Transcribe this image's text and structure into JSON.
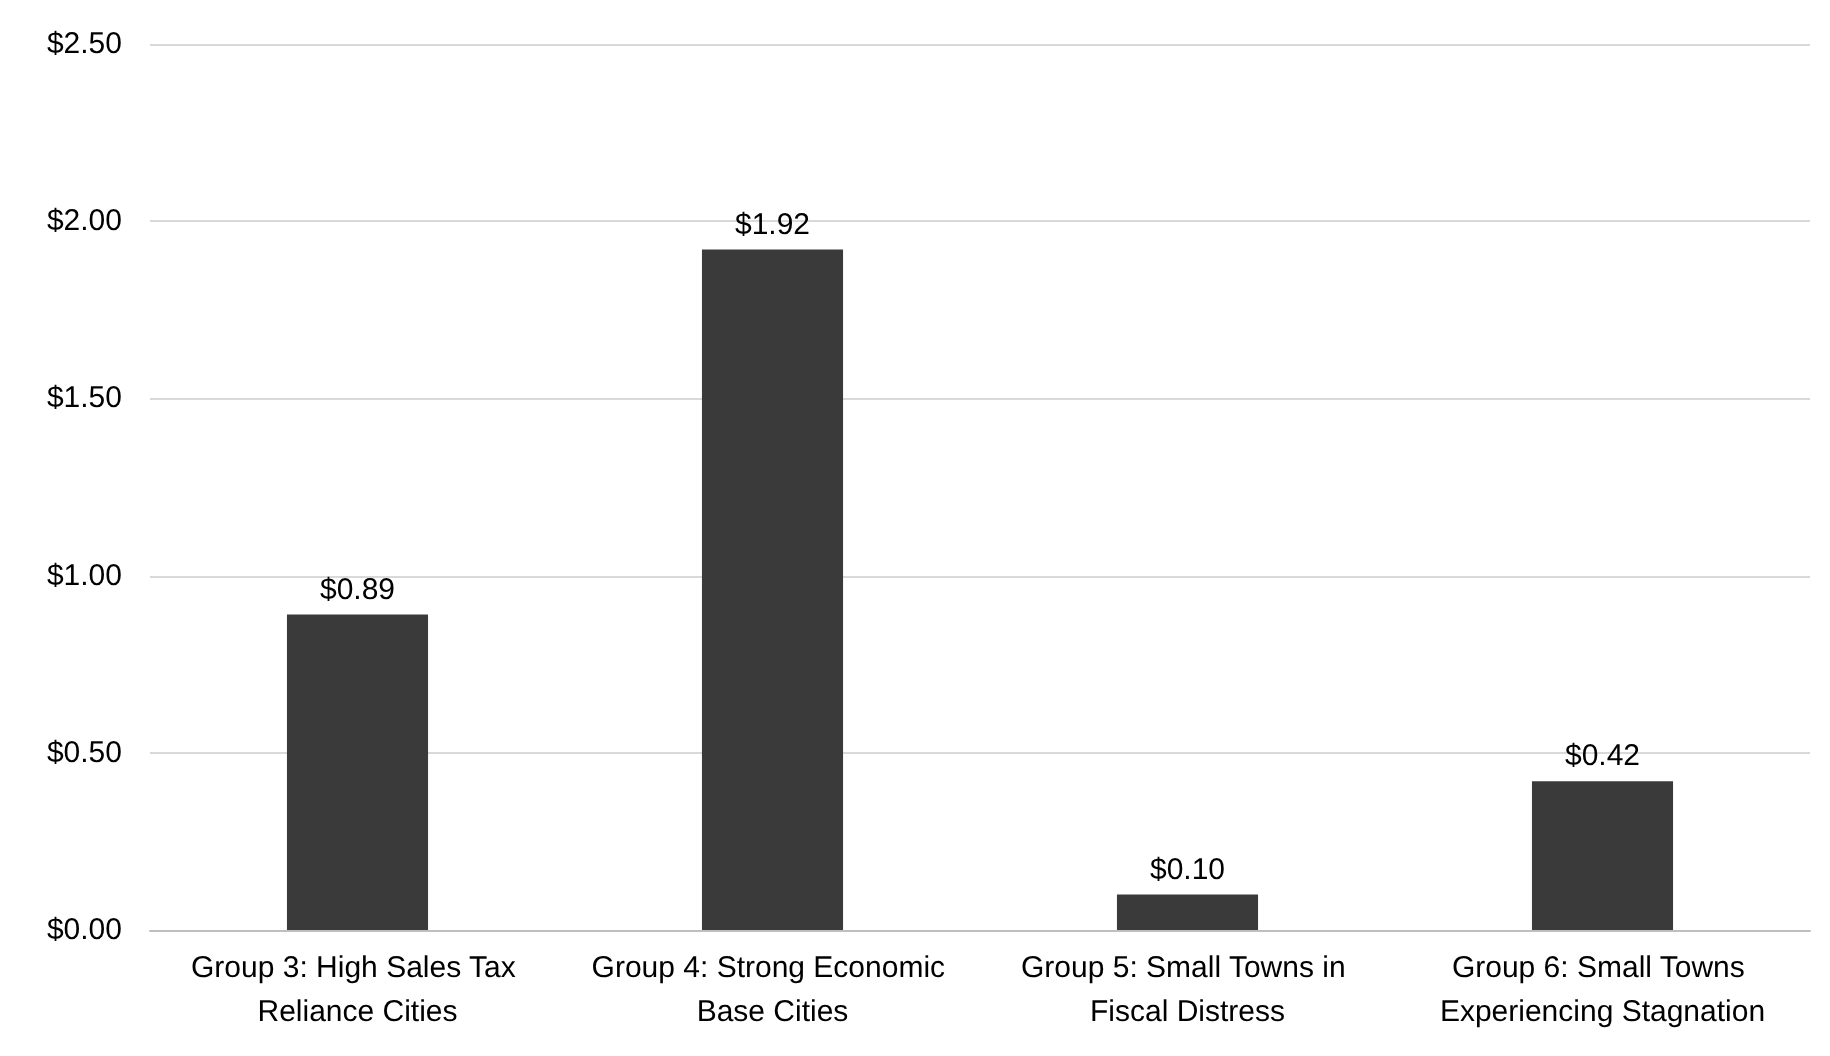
{
  "chart_data": {
    "type": "bar",
    "categories": [
      "Group 3: High Sales Tax Reliance Cities",
      "Group 4: Strong Economic Base Cities",
      "Group 5: Small Towns in Fiscal Distress",
      "Group 6: Small Towns Experiencing Stagnation"
    ],
    "values": [
      0.89,
      1.92,
      0.1,
      0.42
    ],
    "value_labels": [
      "$0.89",
      "$1.92",
      "$0.10",
      "$0.42"
    ],
    "color": "#3a3a3a",
    "ylim": [
      0,
      2.5
    ],
    "yticks": [
      {
        "value": 0,
        "label": "$0.00"
      },
      {
        "value": 0.5,
        "label": "$0.50"
      },
      {
        "value": 1,
        "label": "$1.00"
      },
      {
        "value": 1.5,
        "label": "$1.50"
      },
      {
        "value": 2,
        "label": "$2.00"
      },
      {
        "value": 2.5,
        "label": "$2.50"
      }
    ],
    "grid": "y"
  }
}
